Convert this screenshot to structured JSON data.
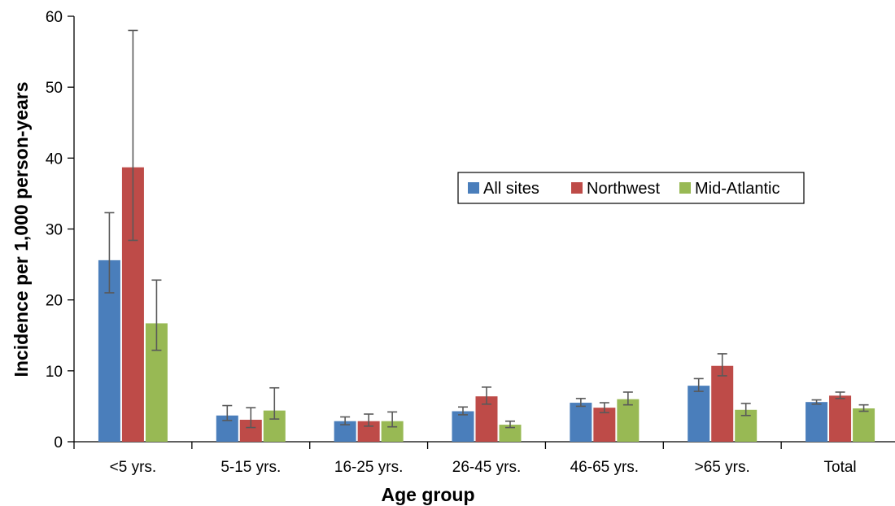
{
  "chart_data": {
    "type": "bar",
    "title": "",
    "xlabel": "Age group",
    "ylabel": "Incidence per 1,000 person-years",
    "ylim": [
      0,
      60
    ],
    "yticks": [
      0,
      10,
      20,
      30,
      40,
      50,
      60
    ],
    "grid": false,
    "legend_position": "top-right",
    "categories": [
      "<5 yrs.",
      "5-15 yrs.",
      "16-25 yrs.",
      "26-45 yrs.",
      "46-65 yrs.",
      ">65 yrs.",
      "Total"
    ],
    "series": [
      {
        "name": "All sites",
        "color": "#4a7ebb",
        "values": [
          25.6,
          3.7,
          2.9,
          4.3,
          5.5,
          7.9,
          5.6
        ],
        "error_low": [
          21.0,
          3.0,
          2.4,
          3.8,
          5.0,
          7.1,
          5.3
        ],
        "error_high": [
          32.3,
          5.1,
          3.5,
          4.9,
          6.1,
          8.9,
          5.9
        ]
      },
      {
        "name": "Northwest",
        "color": "#be4b48",
        "values": [
          38.7,
          3.1,
          2.9,
          6.4,
          4.8,
          10.7,
          6.5
        ],
        "error_low": [
          28.4,
          2.0,
          2.2,
          5.3,
          4.1,
          9.3,
          6.1
        ],
        "error_high": [
          58.0,
          4.8,
          3.9,
          7.7,
          5.5,
          12.4,
          7.0
        ]
      },
      {
        "name": "Mid-Atlantic",
        "color": "#98b954",
        "values": [
          16.7,
          4.4,
          2.9,
          2.4,
          6.0,
          4.5,
          4.7
        ],
        "error_low": [
          12.9,
          3.2,
          2.1,
          2.0,
          5.2,
          3.7,
          4.3
        ],
        "error_high": [
          22.8,
          7.6,
          4.2,
          2.9,
          7.0,
          5.4,
          5.2
        ]
      }
    ],
    "error_bar_color": "#595959"
  }
}
